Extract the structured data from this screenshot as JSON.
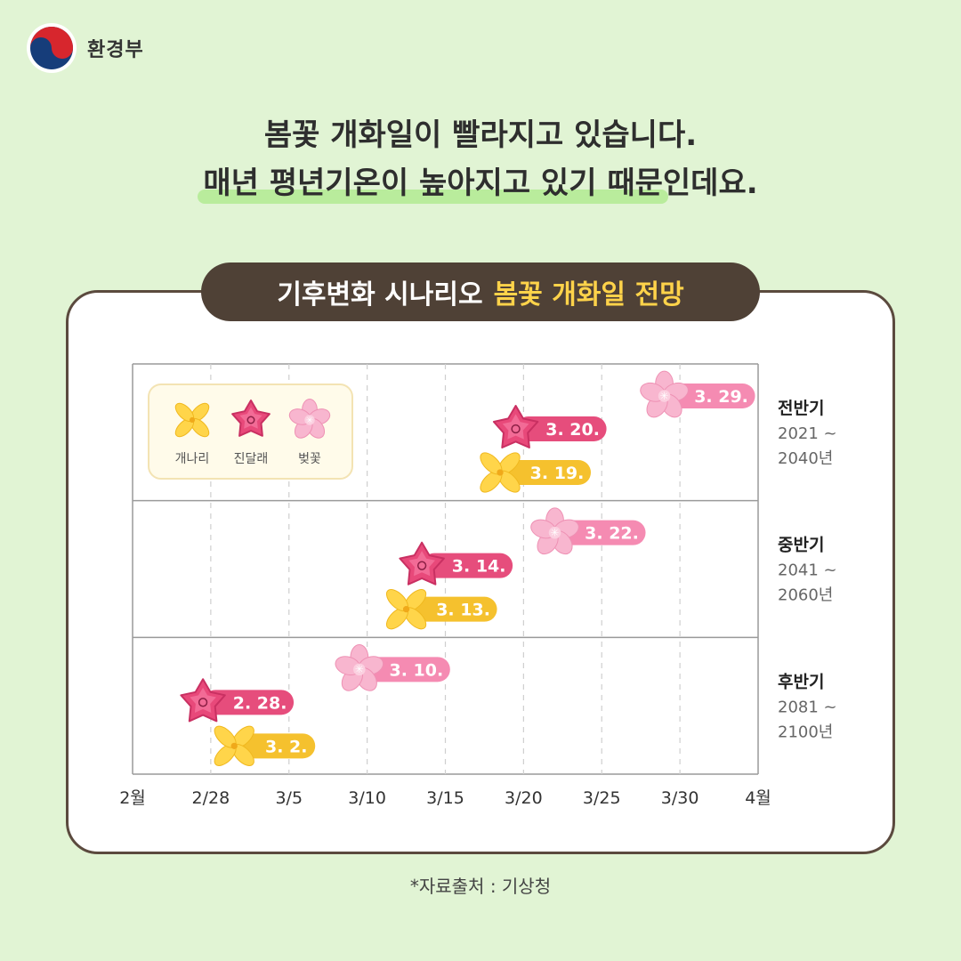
{
  "brand": {
    "name": "환경부"
  },
  "headline": {
    "line1": "봄꽃 개화일이 빨라지고 있습니다.",
    "line2_highlight": "매년 평년기온이 높아지고 있기 때문",
    "line2_rest": "인데요."
  },
  "banner": {
    "prefix": "기후변화 시나리오",
    "highlight": "봄꽃 개화일 전망"
  },
  "source": "*자료출처 : 기상청",
  "chart_data": {
    "type": "scatter",
    "x_ticks": [
      "2월",
      "2/28",
      "3/5",
      "3/10",
      "3/15",
      "3/20",
      "3/25",
      "3/30",
      "4월"
    ],
    "xlim": [
      "2월",
      "4월"
    ],
    "legend": {
      "placement": "top-left",
      "entries": [
        "개나리",
        "진달래",
        "벚꽃"
      ]
    },
    "periods": [
      {
        "title": "전반기",
        "range1": "2021 ~",
        "range2": "2040년"
      },
      {
        "title": "중반기",
        "range1": "2041 ~",
        "range2": "2060년"
      },
      {
        "title": "후반기",
        "range1": "2081 ~",
        "range2": "2100년"
      }
    ],
    "series": [
      {
        "name": "개나리",
        "color": "#f5c12e",
        "values": [
          "3. 19.",
          "3. 13.",
          "3. 2."
        ],
        "x": [
          18.5,
          12.5,
          1.5
        ]
      },
      {
        "name": "진달래",
        "color": "#e64d7c",
        "values": [
          "3. 20.",
          "3. 14.",
          "2. 28."
        ],
        "x": [
          19.5,
          13.5,
          -0.5
        ]
      },
      {
        "name": "벚꽃",
        "color": "#f58bb2",
        "values": [
          "3. 29.",
          "3. 22.",
          "3. 10."
        ],
        "x": [
          29,
          22,
          9.5
        ]
      }
    ]
  }
}
